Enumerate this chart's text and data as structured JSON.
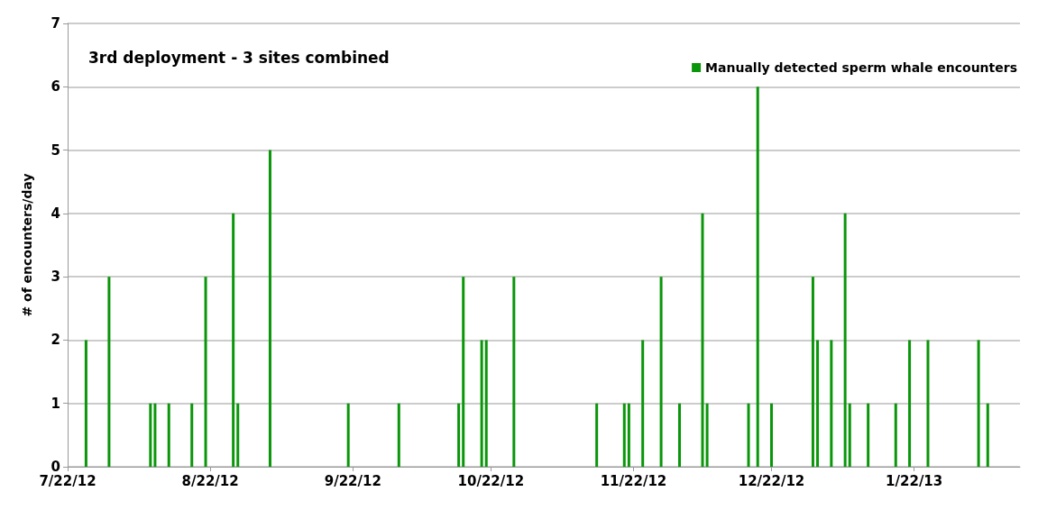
{
  "chart_data": {
    "type": "bar",
    "title": "3rd deployment - 3 sites combined",
    "ylabel": "# of encounters/day",
    "x": [
      "2012-07-26",
      "2012-07-31",
      "2012-08-09",
      "2012-08-10",
      "2012-08-13",
      "2012-08-18",
      "2012-08-21",
      "2012-08-27",
      "2012-08-28",
      "2012-09-04",
      "2012-09-21",
      "2012-10-02",
      "2012-10-15",
      "2012-10-16",
      "2012-10-20",
      "2012-10-21",
      "2012-10-27",
      "2012-11-14",
      "2012-11-20",
      "2012-11-21",
      "2012-11-24",
      "2012-11-28",
      "2012-12-02",
      "2012-12-07",
      "2012-12-08",
      "2012-12-17",
      "2012-12-19",
      "2012-12-22",
      "2012-12-31",
      "2013-01-01",
      "2013-01-04",
      "2013-01-07",
      "2013-01-08",
      "2013-01-12",
      "2013-01-18",
      "2013-01-21",
      "2013-01-25",
      "2013-02-05",
      "2013-02-07"
    ],
    "series": [
      {
        "name": "Manually detected sperm whale encounters",
        "color": "#0a960a",
        "values": [
          2,
          3,
          1,
          1,
          1,
          1,
          3,
          4,
          1,
          5,
          1,
          1,
          1,
          3,
          2,
          2,
          3,
          1,
          1,
          1,
          2,
          3,
          1,
          4,
          1,
          1,
          6,
          1,
          3,
          2,
          2,
          4,
          1,
          1,
          1,
          2,
          2,
          2,
          1
        ]
      }
    ],
    "xlim": [
      "2012-07-22",
      "2013-02-14"
    ],
    "xticks": [
      {
        "value": "2012-07-22",
        "label": "7/22/12"
      },
      {
        "value": "2012-08-22",
        "label": "8/22/12"
      },
      {
        "value": "2012-09-22",
        "label": "9/22/12"
      },
      {
        "value": "2012-10-22",
        "label": "10/22/12"
      },
      {
        "value": "2012-11-22",
        "label": "11/22/12"
      },
      {
        "value": "2012-12-22",
        "label": "12/22/12"
      },
      {
        "value": "2013-01-22",
        "label": "1/22/13"
      }
    ],
    "ylim": [
      0,
      7
    ],
    "yticks": [
      0,
      1,
      2,
      3,
      4,
      5,
      6,
      7
    ],
    "grid": "y",
    "legend": "top right"
  }
}
